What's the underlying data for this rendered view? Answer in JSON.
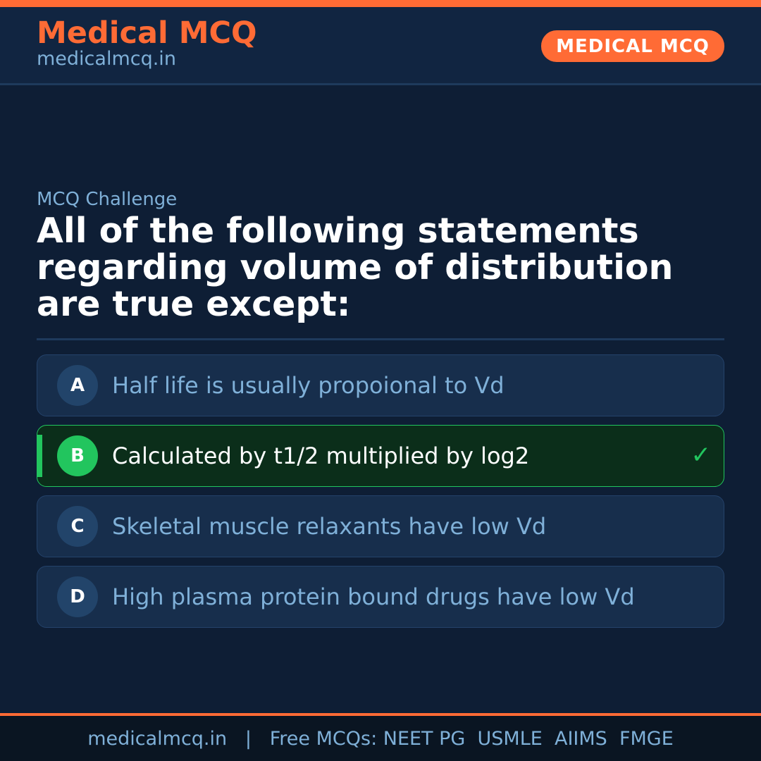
{
  "header": {
    "brand": "Medical MCQ",
    "site": "medicalmcq.in",
    "badge": "MEDICAL MCQ"
  },
  "main": {
    "kicker": "MCQ Challenge",
    "question": "All of the following statements regarding volume of distribution are true except:",
    "options": [
      {
        "letter": "A",
        "text": "Half life is usually propoional to Vd"
      },
      {
        "letter": "B",
        "text": "Calculated by t1/2 multiplied by log2",
        "correct": true
      },
      {
        "letter": "C",
        "text": "Skeletal muscle relaxants have low Vd"
      },
      {
        "letter": "D",
        "text": "High plasma protein bound drugs have low Vd"
      }
    ],
    "check_icon": "check-icon"
  },
  "footer": {
    "text": "medicalmcq.in   |   Free MCQs: NEET PG  USMLE  AIIMS  FMGE"
  },
  "colors": {
    "accent": "#ff6b35",
    "correct": "#22c55e",
    "background": "#0e1e35"
  }
}
